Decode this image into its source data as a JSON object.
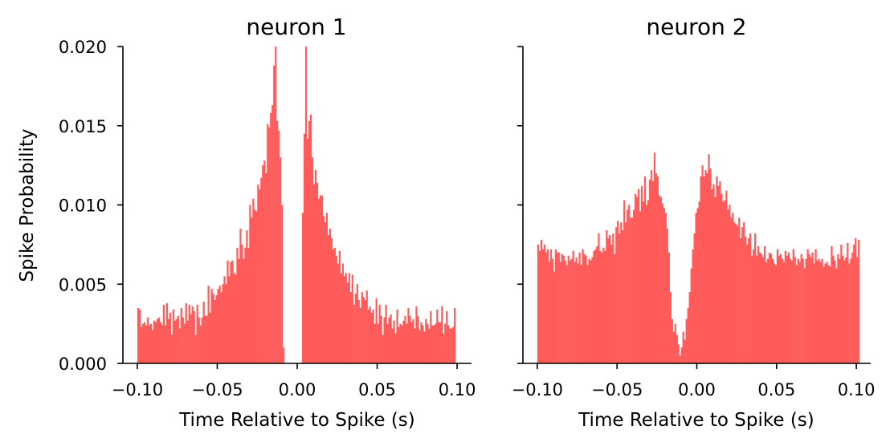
{
  "chart_data": [
    {
      "type": "bar",
      "title": "neuron 1",
      "xlabel": "Time Relative to Spike (s)",
      "ylabel": "Spike Probability",
      "xlim": [
        -0.109,
        0.109
      ],
      "ylim": [
        0,
        0.02
      ],
      "xticks": [
        "−0.10",
        "−0.05",
        "0.00",
        "0.05",
        "0.10"
      ],
      "xtick_values": [
        -0.1,
        -0.05,
        0,
        0.05,
        0.1
      ],
      "yticks": [
        "0.000",
        "0.005",
        "0.010",
        "0.015",
        "0.020"
      ],
      "ytick_values": [
        0,
        0.005,
        0.01,
        0.015,
        0.02
      ],
      "color": "#ff5b5b",
      "grid": false,
      "bin_width": 0.001,
      "x_start": -0.1,
      "values": [
        0.0035,
        0.0034,
        0.0023,
        0.0025,
        0.0026,
        0.0024,
        0.0029,
        0.0024,
        0.0025,
        0.0021,
        0.0027,
        0.0026,
        0.0028,
        0.0029,
        0.0026,
        0.0024,
        0.0037,
        0.0024,
        0.0038,
        0.0028,
        0.0032,
        0.0018,
        0.0034,
        0.0027,
        0.0028,
        0.003,
        0.0022,
        0.0035,
        0.0029,
        0.0025,
        0.0038,
        0.0027,
        0.0037,
        0.0031,
        0.0036,
        0.0033,
        0.0018,
        0.0037,
        0.0029,
        0.0024,
        0.0029,
        0.0039,
        0.003,
        0.003,
        0.0049,
        0.0032,
        0.0047,
        0.0044,
        0.004,
        0.0043,
        0.0047,
        0.0049,
        0.0045,
        0.005,
        0.0055,
        0.005,
        0.0065,
        0.0055,
        0.0064,
        0.0065,
        0.0057,
        0.0056,
        0.0073,
        0.0066,
        0.0085,
        0.0075,
        0.0066,
        0.0073,
        0.0084,
        0.0073,
        0.01,
        0.0092,
        0.0104,
        0.0097,
        0.0096,
        0.0113,
        0.011,
        0.0117,
        0.0125,
        0.0128,
        0.012,
        0.0151,
        0.0149,
        0.0158,
        0.0163,
        0.0188,
        0.021,
        0.0153,
        0.0147,
        0.013,
        0.01,
        0.001,
        0.0,
        0.0,
        0.0,
        0.0,
        0.0,
        0.0,
        0.0,
        0.0,
        0.0,
        0.0,
        0.0,
        0.0095,
        0.0145,
        0.0215,
        0.0142,
        0.0153,
        0.0157,
        0.013,
        0.0113,
        0.0122,
        0.0114,
        0.0104,
        0.0106,
        0.0106,
        0.0093,
        0.0089,
        0.0095,
        0.0081,
        0.0085,
        0.0079,
        0.0072,
        0.0073,
        0.0068,
        0.0063,
        0.0071,
        0.0057,
        0.0063,
        0.0055,
        0.0057,
        0.0051,
        0.0057,
        0.0045,
        0.0056,
        0.0037,
        0.0044,
        0.005,
        0.004,
        0.0035,
        0.0045,
        0.0042,
        0.004,
        0.0046,
        0.0034,
        0.0036,
        0.0032,
        0.0034,
        0.0025,
        0.0041,
        0.0025,
        0.0037,
        0.003,
        0.0018,
        0.0029,
        0.0037,
        0.0025,
        0.0029,
        0.0031,
        0.0022,
        0.0027,
        0.0019,
        0.0034,
        0.0023,
        0.0025,
        0.0024,
        0.0027,
        0.003,
        0.0025,
        0.0035,
        0.003,
        0.0026,
        0.0028,
        0.0022,
        0.0036,
        0.003,
        0.0021,
        0.0026,
        0.0024,
        0.002,
        0.0028,
        0.0025,
        0.0022,
        0.0033,
        0.0024,
        0.0024,
        0.0025,
        0.0034,
        0.0026,
        0.0026,
        0.0036,
        0.0019,
        0.0025,
        0.0033,
        0.0024,
        0.0022,
        0.0022,
        0.0023,
        0.0035
      ]
    },
    {
      "type": "bar",
      "title": "neuron 2",
      "xlabel": "Time Relative to Spike (s)",
      "ylabel": "",
      "xlim": [
        -0.109,
        0.109
      ],
      "ylim": [
        0,
        0.02
      ],
      "xticks": [
        "−0.10",
        "−0.05",
        "0.00",
        "0.05",
        "0.10"
      ],
      "xtick_values": [
        -0.1,
        -0.05,
        0,
        0.05,
        0.1
      ],
      "yticks": [
        "",
        "",
        "",
        "",
        ""
      ],
      "ytick_values": [
        0,
        0.005,
        0.01,
        0.015,
        0.02
      ],
      "color": "#ff5b5b",
      "grid": false,
      "bin_width": 0.001,
      "x_start": -0.1,
      "values": [
        0.0075,
        0.0071,
        0.0078,
        0.0072,
        0.0075,
        0.007,
        0.0072,
        0.0064,
        0.0072,
        0.0066,
        0.0058,
        0.0072,
        0.007,
        0.007,
        0.0064,
        0.0069,
        0.0068,
        0.0065,
        0.0062,
        0.0068,
        0.0065,
        0.0066,
        0.0071,
        0.0064,
        0.0067,
        0.0063,
        0.007,
        0.0062,
        0.0072,
        0.0069,
        0.0068,
        0.0062,
        0.0066,
        0.0065,
        0.0067,
        0.0071,
        0.0072,
        0.0074,
        0.0082,
        0.0071,
        0.007,
        0.0073,
        0.0071,
        0.0084,
        0.0079,
        0.0081,
        0.0075,
        0.0082,
        0.0069,
        0.0086,
        0.009,
        0.0082,
        0.0089,
        0.0084,
        0.0103,
        0.0089,
        0.0097,
        0.01,
        0.0092,
        0.0092,
        0.0097,
        0.0107,
        0.0105,
        0.011,
        0.0096,
        0.0112,
        0.0102,
        0.0118,
        0.01,
        0.0103,
        0.0116,
        0.0122,
        0.0115,
        0.0133,
        0.012,
        0.0118,
        0.0106,
        0.0105,
        0.0101,
        0.0098,
        0.0095,
        0.0085,
        0.007,
        0.0045,
        0.0028,
        0.002,
        0.0025,
        0.0018,
        0.0012,
        0.0005,
        0.001,
        0.002,
        0.0015,
        0.0028,
        0.0035,
        0.0045,
        0.006,
        0.0072,
        0.0082,
        0.0095,
        0.0098,
        0.0102,
        0.0118,
        0.0125,
        0.0118,
        0.0122,
        0.012,
        0.0132,
        0.0123,
        0.011,
        0.0113,
        0.0105,
        0.0118,
        0.0112,
        0.0115,
        0.0107,
        0.0102,
        0.0103,
        0.0109,
        0.0097,
        0.01,
        0.0092,
        0.0095,
        0.0089,
        0.0088,
        0.0087,
        0.0092,
        0.0079,
        0.0086,
        0.0089,
        0.008,
        0.0075,
        0.0079,
        0.0082,
        0.0068,
        0.0072,
        0.0082,
        0.0068,
        0.0074,
        0.007,
        0.0069,
        0.0067,
        0.0074,
        0.0064,
        0.0066,
        0.007,
        0.0069,
        0.0066,
        0.0063,
        0.0062,
        0.0072,
        0.0068,
        0.0069,
        0.0066,
        0.0064,
        0.0071,
        0.0068,
        0.007,
        0.0066,
        0.0065,
        0.0072,
        0.0067,
        0.0062,
        0.0066,
        0.0064,
        0.0069,
        0.0066,
        0.006,
        0.0066,
        0.0072,
        0.0069,
        0.0067,
        0.007,
        0.0063,
        0.0072,
        0.0065,
        0.0066,
        0.0064,
        0.0066,
        0.0061,
        0.0063,
        0.0064,
        0.0062,
        0.0061,
        0.0074,
        0.0068,
        0.0065,
        0.006,
        0.0069,
        0.0066,
        0.0075,
        0.0068,
        0.0065,
        0.0067,
        0.0076,
        0.0063,
        0.0066,
        0.007,
        0.0075,
        0.0079,
        0.0067,
        0.0078
      ]
    }
  ]
}
